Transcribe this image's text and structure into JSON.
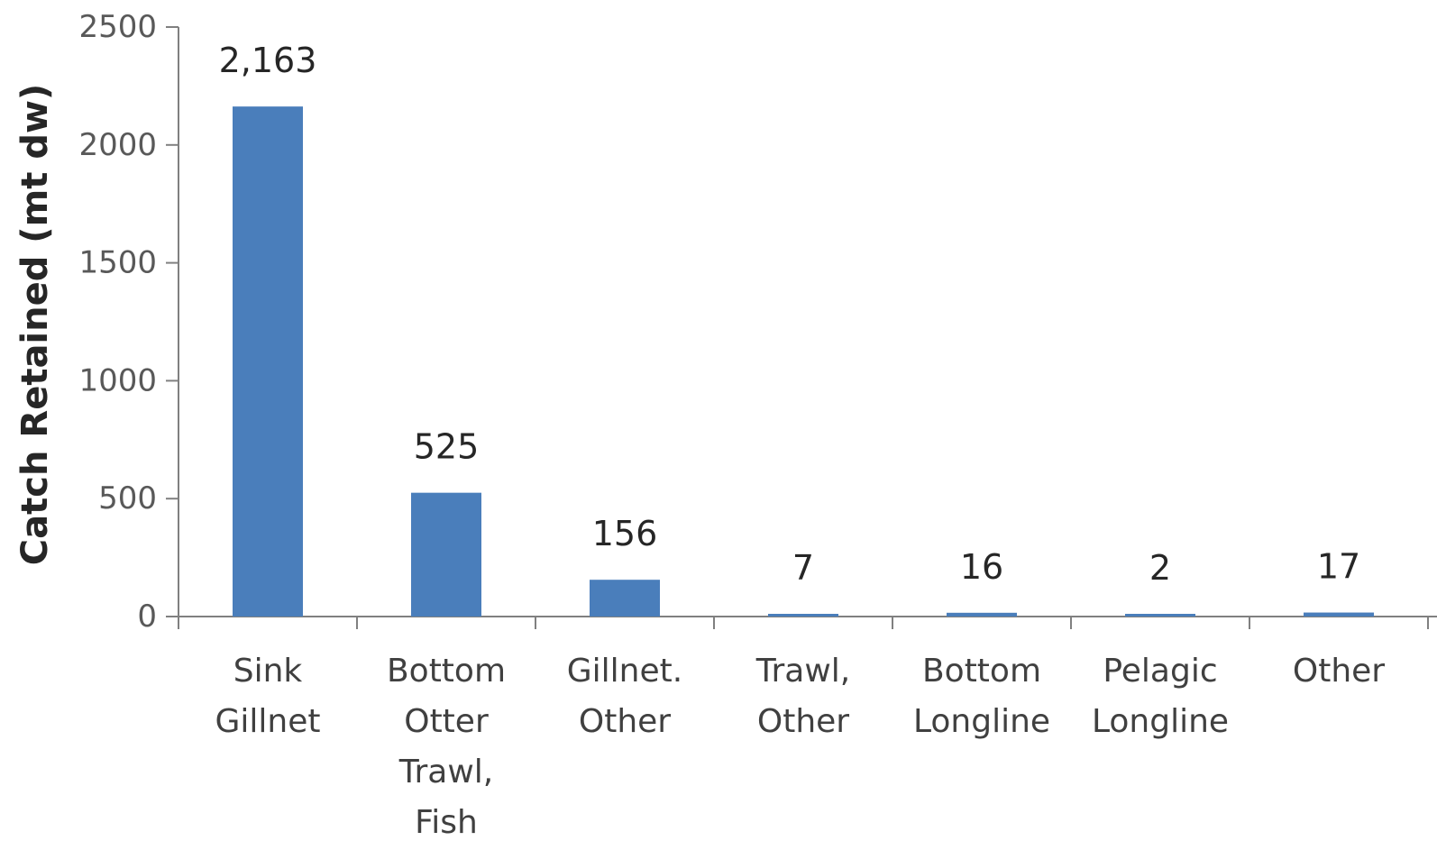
{
  "chart_data": {
    "type": "bar",
    "title": "",
    "xlabel": "",
    "ylabel": "Catch Retained (mt dw)",
    "categories": [
      [
        "Sink",
        "Gillnet"
      ],
      [
        "Bottom",
        "Otter",
        "Trawl,",
        "Fish"
      ],
      [
        "Gillnet.",
        "Other"
      ],
      [
        "Trawl,",
        "Other"
      ],
      [
        "Bottom",
        "Longline"
      ],
      [
        "Pelagic",
        "Longline"
      ],
      [
        "Other"
      ]
    ],
    "values": [
      2163,
      525,
      156,
      7,
      16,
      2,
      17
    ],
    "data_labels": [
      "2,163",
      "525",
      "156",
      "7",
      "16",
      "2",
      "17"
    ],
    "yticks": [
      0,
      500,
      1000,
      1500,
      2000,
      2500
    ],
    "ylim": [
      0,
      2500
    ],
    "grid": false,
    "legend": "none",
    "bar_color": "#4a7ebb"
  }
}
